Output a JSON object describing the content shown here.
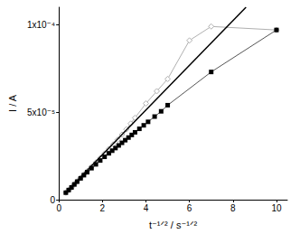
{
  "chart_data": {
    "type": "line",
    "x_label": "t⁻¹ᐟ² / s⁻¹ᐟ²",
    "y_label": "I / A",
    "xlim": [
      0,
      10.5
    ],
    "xticks": [
      0,
      2,
      4,
      6,
      8,
      10
    ],
    "ylim": [
      0,
      0.00011
    ],
    "yticks": [
      0,
      {
        "value": 5e-05,
        "label": "5x10⁻⁵"
      },
      {
        "value": 0.0001,
        "label": "1x10⁻⁴"
      }
    ],
    "grid": false,
    "series": [
      {
        "color": "#b0b0b0",
        "marker": "diamond",
        "line_style": "solid",
        "x": [
          0.32,
          0.45,
          0.58,
          0.71,
          0.84,
          1.0,
          1.15,
          1.3,
          1.5,
          1.7,
          1.9,
          2.1,
          2.3,
          2.5,
          2.7,
          2.9,
          3.1,
          3.3,
          3.5,
          4.0,
          4.5,
          5.0,
          6.0,
          7.0,
          10.0
        ],
        "values": [
          4e-06,
          5.5e-06,
          7e-06,
          8.8e-06,
          1.05e-05,
          1.25e-05,
          1.45e-05,
          1.63e-05,
          1.88e-05,
          2.13e-05,
          2.38e-05,
          2.64e-05,
          2.9e-05,
          3.16e-05,
          3.43e-05,
          3.72e-05,
          4.02e-05,
          4.35e-05,
          4.68e-05,
          5.5e-05,
          6.2e-05,
          6.9e-05,
          9.1e-05,
          9.9e-05,
          9.7e-05
        ]
      },
      {
        "color": "#000000",
        "marker": "none",
        "line_style": "solid",
        "x": [
          0.3,
          8.6
        ],
        "values": [
          4e-06,
          0.00011
        ]
      },
      {
        "color": "#555555",
        "marker": "square",
        "line_style": "solid",
        "x": [
          0.32,
          0.45,
          0.58,
          0.71,
          0.84,
          1.0,
          1.15,
          1.3,
          1.5,
          1.7,
          1.9,
          2.1,
          2.3,
          2.45,
          2.6,
          2.75,
          2.9,
          3.05,
          3.2,
          3.35,
          3.5,
          3.7,
          3.9,
          4.1,
          4.4,
          4.7,
          5.0,
          7.0,
          10.0
        ],
        "values": [
          4e-06,
          5.5e-06,
          7e-06,
          8.7e-06,
          1.03e-05,
          1.22e-05,
          1.4e-05,
          1.57e-05,
          1.8e-05,
          2.02e-05,
          2.24e-05,
          2.45e-05,
          2.65e-05,
          2.8e-05,
          2.95e-05,
          3.1e-05,
          3.25e-05,
          3.4e-05,
          3.55e-05,
          3.7e-05,
          3.85e-05,
          4.05e-05,
          4.25e-05,
          4.45e-05,
          4.75e-05,
          5.05e-05,
          5.4e-05,
          7.3e-05,
          9.7e-05
        ]
      }
    ]
  }
}
